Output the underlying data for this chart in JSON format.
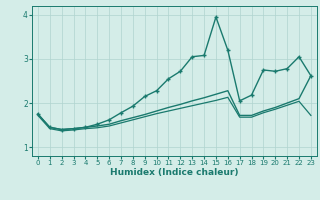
{
  "xlabel": "Humidex (Indice chaleur)",
  "bg_color": "#d4ede8",
  "line_color": "#1a7a6e",
  "grid_color": "#b0d4cf",
  "xlim": [
    -0.5,
    23.5
  ],
  "ylim": [
    0.8,
    4.2
  ],
  "yticks": [
    1,
    2,
    3,
    4
  ],
  "xticks": [
    0,
    1,
    2,
    3,
    4,
    5,
    6,
    7,
    8,
    9,
    10,
    11,
    12,
    13,
    14,
    15,
    16,
    17,
    18,
    19,
    20,
    21,
    22,
    23
  ],
  "series1_x": [
    0,
    1,
    2,
    3,
    4,
    5,
    6,
    7,
    8,
    9,
    10,
    11,
    12,
    13,
    14,
    15,
    16,
    17,
    18,
    19,
    20,
    21,
    22,
    23
  ],
  "series1_y": [
    1.75,
    1.45,
    1.4,
    1.42,
    1.45,
    1.48,
    1.52,
    1.6,
    1.67,
    1.74,
    1.82,
    1.9,
    1.97,
    2.05,
    2.12,
    2.2,
    2.28,
    1.72,
    1.72,
    1.82,
    1.9,
    2.0,
    2.1,
    2.62
  ],
  "series2_x": [
    0,
    1,
    2,
    3,
    4,
    5,
    6,
    7,
    8,
    9,
    10,
    11,
    12,
    13,
    14,
    15,
    16,
    17,
    18,
    19,
    20,
    21,
    22,
    23
  ],
  "series2_y": [
    1.72,
    1.42,
    1.37,
    1.39,
    1.42,
    1.44,
    1.48,
    1.55,
    1.62,
    1.69,
    1.76,
    1.82,
    1.88,
    1.94,
    2.0,
    2.06,
    2.13,
    1.68,
    1.68,
    1.78,
    1.86,
    1.95,
    2.04,
    1.72
  ],
  "series3_x": [
    0,
    1,
    2,
    3,
    4,
    5,
    6,
    7,
    8,
    9,
    10,
    11,
    12,
    13,
    14,
    15,
    16,
    17,
    18,
    19,
    20,
    21,
    22,
    23
  ],
  "series3_y": [
    1.75,
    1.45,
    1.4,
    1.42,
    1.45,
    1.52,
    1.62,
    1.78,
    1.93,
    2.15,
    2.28,
    2.55,
    2.72,
    3.05,
    3.08,
    3.95,
    3.2,
    2.05,
    2.18,
    2.75,
    2.72,
    2.78,
    3.05,
    2.62
  ]
}
